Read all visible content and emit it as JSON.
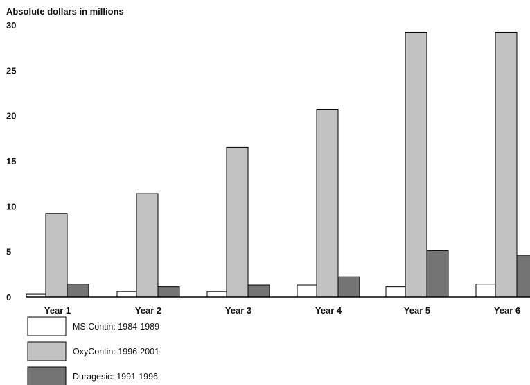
{
  "chart_data": {
    "type": "bar",
    "ylabel": "Absolute dollars in millions",
    "ylim": [
      0,
      30
    ],
    "yticks": [
      "0",
      "5",
      "10",
      "15",
      "20",
      "25",
      "30"
    ],
    "categories": [
      "Year 1",
      "Year 2",
      "Year 3",
      "Year 4",
      "Year 5",
      "Year 6"
    ],
    "series": [
      {
        "name": "MS Contin: 1984-1989",
        "color": "#ffffff",
        "values": [
          0.3,
          0.6,
          0.6,
          1.3,
          1.1,
          1.4
        ]
      },
      {
        "name": "OxyContin: 1996-2001",
        "color": "#c2c2c2",
        "values": [
          9.2,
          11.4,
          16.5,
          20.7,
          29.2,
          29.2
        ]
      },
      {
        "name": "Duragesic: 1991-1996",
        "color": "#747474",
        "values": [
          1.4,
          1.1,
          1.3,
          2.2,
          5.1,
          4.6
        ]
      }
    ],
    "legend_position": "bottom-left",
    "grid": false
  }
}
